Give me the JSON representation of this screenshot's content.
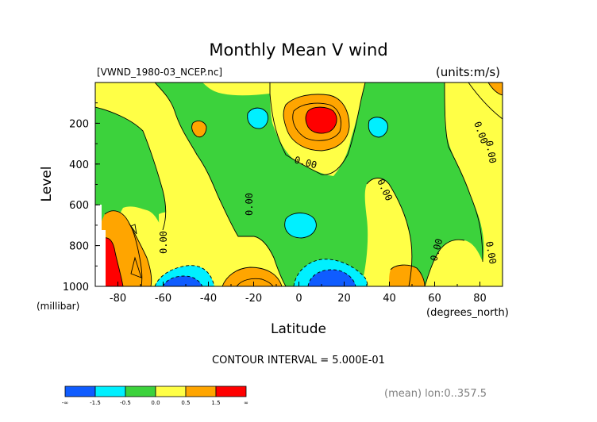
{
  "chart_data": {
    "type": "heatmap",
    "title": "Monthly Mean V wind",
    "source_label": "[VWND_1980-03_NCEP.nc]",
    "units_label": "(units:m/s)",
    "xlabel": "Latitude",
    "x_units": "(degrees_north)",
    "ylabel": "Level",
    "y_units": "(millibar)",
    "x_ticks": [
      "-80",
      "-60",
      "-40",
      "-20",
      "0",
      "20",
      "40",
      "60",
      "80"
    ],
    "y_ticks": [
      "200",
      "400",
      "600",
      "800",
      "1000"
    ],
    "xlim": [
      -90,
      90
    ],
    "ylim": [
      1000,
      0
    ],
    "contour_labels": [
      "0.00",
      "0.00",
      "0.00",
      "0.00",
      "0.00",
      "0.00",
      "0.00",
      "0.00"
    ],
    "contour_interval": "CONTOUR INTERVAL = 5.000E-01",
    "footer_note": "(mean) lon:0..357.5",
    "legend": {
      "colors": [
        "#0f5cff",
        "#00f0ff",
        "#3cd23c",
        "#ffff46",
        "#ffa500",
        "#ff0000"
      ],
      "labels": [
        "-∞",
        "-1.5",
        "-0.5",
        "0.0",
        "0.5",
        "1.5",
        "∞"
      ]
    },
    "colors": {
      "green": "#3cd23c",
      "yellow": "#ffff46",
      "orange": "#ffa500",
      "red": "#ff0000",
      "cyan": "#00f0ff",
      "blue": "#0f5cff"
    }
  }
}
